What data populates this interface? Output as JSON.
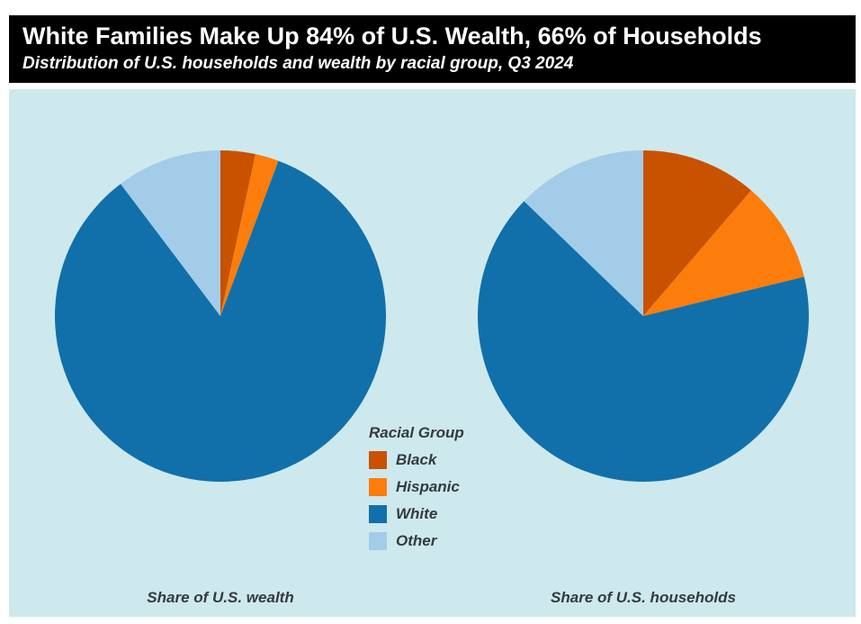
{
  "header": {
    "background": "#000000",
    "text_color": "#ffffff"
  },
  "plot": {
    "background": "#cde9ed",
    "text_color": "#343a3e"
  },
  "chart_data": {
    "type": "pie",
    "title": "White Families Make Up 84% of U.S. Wealth, 66% of Households",
    "subtitle": "Distribution of U.S. households and wealth by racial group, Q3 2024",
    "legend_title": "Racial Group",
    "legend_position": "center, between the two pies",
    "categories": [
      "Black",
      "Hispanic",
      "White",
      "Other"
    ],
    "colors": [
      "#c85200",
      "#fc7d0b",
      "#1170aa",
      "#a3cce9"
    ],
    "start_angle_deg": 0,
    "direction": "clockwise",
    "pies": [
      {
        "id": "wealth",
        "label": "Share of U.S. wealth",
        "values_pct": [
          3.4,
          2.3,
          84.0,
          10.3
        ]
      },
      {
        "id": "households",
        "label": "Share of U.S. households",
        "values_pct": [
          11.3,
          9.9,
          66.0,
          12.8
        ]
      }
    ]
  }
}
